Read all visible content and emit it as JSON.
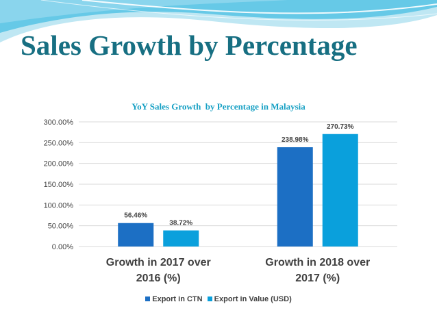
{
  "slide": {
    "title": "Sales Growth by Percentage"
  },
  "colors": {
    "title": "#176f82",
    "chart_title": "#16a0c4",
    "header_light": "#bfe7f3",
    "header_mid": "#56c3e4",
    "series_1": "#1c6fc4",
    "series_2": "#0aa0dc",
    "gridline": "#d9d9d9",
    "text": "#404040"
  },
  "chart_data": {
    "type": "bar",
    "title": "YoY Sales Growth  by Percentage in Malaysia",
    "categories": [
      [
        "Growth in 2017 over",
        "2016 (%)"
      ],
      [
        "Growth in 2018 over",
        "2017 (%)"
      ]
    ],
    "series": [
      {
        "name": "Export in CTN",
        "values": [
          56.46,
          238.98
        ],
        "labels": [
          "56.46%",
          "238.98%"
        ],
        "color": "#1c6fc4"
      },
      {
        "name": "Export in Value (USD)",
        "values": [
          38.72,
          270.73
        ],
        "labels": [
          "38.72%",
          "270.73%"
        ],
        "color": "#0aa0dc"
      }
    ],
    "y_ticks": [
      0,
      50,
      100,
      150,
      200,
      250,
      300
    ],
    "y_tick_labels": [
      "0.00%",
      "50.00%",
      "100.00%",
      "150.00%",
      "200.00%",
      "250.00%",
      "300.00%"
    ],
    "ylim": [
      0,
      300
    ],
    "grid": true,
    "legend_position": "bottom",
    "xlabel": "",
    "ylabel": ""
  }
}
